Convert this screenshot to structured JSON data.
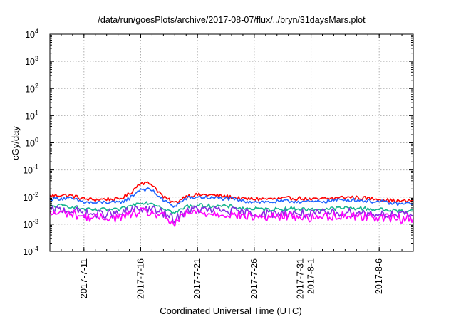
{
  "chart_data": {
    "type": "line",
    "title": "/data/run/goesPlots/archive/2017-08-07/flux/../bryn/31daysMars.plot",
    "xlabel": "Coordinated Universal Time (UTC)",
    "ylabel": "cGy/day",
    "yscale": "log",
    "ylim": [
      0.0001,
      10000
    ],
    "xlim": [
      "2017-07-08",
      "2017-08-09"
    ],
    "grid": true,
    "yticks": [
      {
        "base": "10",
        "exp": "4"
      },
      {
        "base": "10",
        "exp": "3"
      },
      {
        "base": "10",
        "exp": "2"
      },
      {
        "base": "10",
        "exp": "1"
      },
      {
        "base": "10",
        "exp": "0"
      },
      {
        "base": "10",
        "exp": "-1"
      },
      {
        "base": "10",
        "exp": "-2"
      },
      {
        "base": "10",
        "exp": "-3"
      },
      {
        "base": "10",
        "exp": "-4"
      }
    ],
    "xticks": [
      {
        "lines": [
          "2017-7-11"
        ],
        "date": "2017-07-11"
      },
      {
        "lines": [
          "2017-7-16"
        ],
        "date": "2017-07-16"
      },
      {
        "lines": [
          "2017-7-21"
        ],
        "date": "2017-07-21"
      },
      {
        "lines": [
          "2017-7-26"
        ],
        "date": "2017-07-26"
      },
      {
        "lines": [
          "2017-7-31",
          "2017-8-1"
        ],
        "date": "2017-07-31"
      },
      {
        "lines": [
          "2017-8-6"
        ],
        "date": "2017-08-06"
      }
    ],
    "x": [
      "2017-07-08",
      "2017-07-09",
      "2017-07-10",
      "2017-07-11",
      "2017-07-12",
      "2017-07-13",
      "2017-07-14",
      "2017-07-15",
      "2017-07-16",
      "2017-07-17",
      "2017-07-18",
      "2017-07-19",
      "2017-07-20",
      "2017-07-21",
      "2017-07-22",
      "2017-07-23",
      "2017-07-24",
      "2017-07-25",
      "2017-07-26",
      "2017-07-27",
      "2017-07-28",
      "2017-07-29",
      "2017-07-30",
      "2017-07-31",
      "2017-08-01",
      "2017-08-02",
      "2017-08-03",
      "2017-08-04",
      "2017-08-05",
      "2017-08-06",
      "2017-08-07",
      "2017-08-08",
      "2017-08-09"
    ],
    "series": [
      {
        "color": "#ff0000",
        "values": [
          0.011,
          0.012,
          0.011,
          0.0085,
          0.008,
          0.0085,
          0.008,
          0.013,
          0.035,
          0.03,
          0.01,
          0.006,
          0.011,
          0.012,
          0.012,
          0.011,
          0.01,
          0.0085,
          0.0085,
          0.0085,
          0.0085,
          0.009,
          0.009,
          0.008,
          0.0085,
          0.009,
          0.01,
          0.0095,
          0.009,
          0.0085,
          0.0075,
          0.007,
          0.0075
        ]
      },
      {
        "color": "#1e64ff",
        "values": [
          0.0085,
          0.009,
          0.0085,
          0.0065,
          0.006,
          0.0065,
          0.006,
          0.009,
          0.02,
          0.018,
          0.0075,
          0.0045,
          0.009,
          0.01,
          0.0095,
          0.009,
          0.0085,
          0.007,
          0.007,
          0.0065,
          0.0068,
          0.007,
          0.007,
          0.0065,
          0.007,
          0.0075,
          0.008,
          0.0078,
          0.0072,
          0.0068,
          0.006,
          0.0055,
          0.006
        ]
      },
      {
        "color": "#14b48c",
        "values": [
          0.0045,
          0.0048,
          0.0045,
          0.0035,
          0.0033,
          0.0035,
          0.0033,
          0.0045,
          0.0065,
          0.006,
          0.004,
          0.0025,
          0.0045,
          0.005,
          0.0048,
          0.0046,
          0.0044,
          0.0038,
          0.0037,
          0.0035,
          0.0036,
          0.0038,
          0.0037,
          0.0034,
          0.0036,
          0.0038,
          0.004,
          0.0039,
          0.0037,
          0.0035,
          0.0032,
          0.003,
          0.0032
        ]
      },
      {
        "color": "#8a2be2",
        "values": [
          0.0032,
          0.0034,
          0.0032,
          0.0025,
          0.0023,
          0.0024,
          0.0023,
          0.003,
          0.0038,
          0.0036,
          0.0025,
          0.0014,
          0.0033,
          0.0035,
          0.0033,
          0.0032,
          0.003,
          0.0026,
          0.0025,
          0.0024,
          0.0025,
          0.0026,
          0.0025,
          0.0023,
          0.0025,
          0.0026,
          0.0028,
          0.0027,
          0.0025,
          0.0024,
          0.0022,
          0.0021,
          0.0022
        ]
      },
      {
        "color": "#ff00ff",
        "values": [
          0.0024,
          0.0026,
          0.0024,
          0.0019,
          0.0017,
          0.0018,
          0.0017,
          0.0022,
          0.0028,
          0.0026,
          0.0019,
          0.001,
          0.0025,
          0.0027,
          0.0025,
          0.0024,
          0.0023,
          0.002,
          0.0019,
          0.0018,
          0.0019,
          0.002,
          0.0019,
          0.0017,
          0.0019,
          0.002,
          0.0021,
          0.002,
          0.0019,
          0.0018,
          0.0017,
          0.0016,
          0.0017
        ]
      }
    ]
  }
}
